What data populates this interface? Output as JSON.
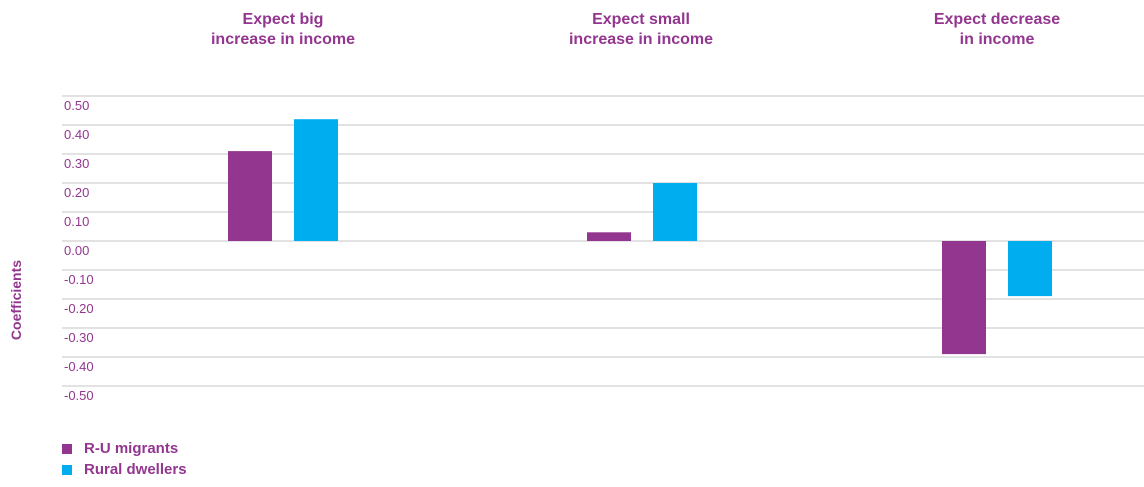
{
  "chart_data": {
    "type": "bar",
    "categories": [
      [
        "Expect big",
        "increase in income"
      ],
      [
        "Expect small",
        "increase in income"
      ],
      [
        "Expect decrease",
        "in income"
      ]
    ],
    "series": [
      {
        "name": "R-U migrants",
        "color": "#93368f",
        "values": [
          0.31,
          0.03,
          -0.39
        ]
      },
      {
        "name": "Rural dwellers",
        "color": "#00aeef",
        "values": [
          0.42,
          0.2,
          -0.19
        ]
      }
    ],
    "ylabel": "Coefficients",
    "ylim": [
      -0.5,
      0.5
    ],
    "yticks": [
      "0.50",
      "0.40",
      "0.30",
      "0.20",
      "0.10",
      "0.00",
      "-0.10",
      "-0.20",
      "-0.30",
      "-0.40",
      "-0.50"
    ],
    "grid": true,
    "legend_position": "bottom-left"
  }
}
